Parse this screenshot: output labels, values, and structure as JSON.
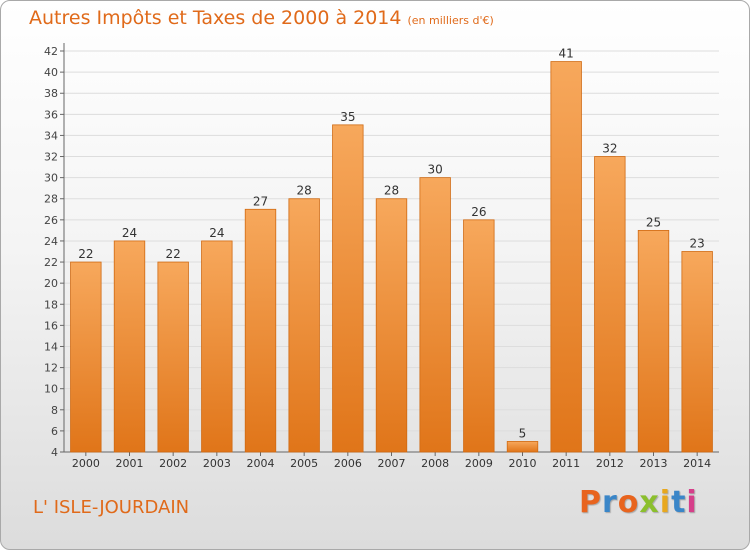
{
  "chart_data": {
    "type": "bar",
    "title": "Autres Impôts et Taxes de 2000 à 2014",
    "unit_label": "(en milliers d'€)",
    "categories": [
      "2000",
      "2001",
      "2002",
      "2003",
      "2004",
      "2005",
      "2006",
      "2007",
      "2008",
      "2009",
      "2010",
      "2011",
      "2012",
      "2013",
      "2014"
    ],
    "values": [
      22,
      24,
      22,
      24,
      27,
      28,
      35,
      28,
      30,
      26,
      5,
      41,
      32,
      25,
      23
    ],
    "ylim": [
      4,
      42
    ],
    "yticks": [
      4,
      6,
      8,
      10,
      12,
      14,
      16,
      18,
      20,
      22,
      24,
      26,
      28,
      30,
      32,
      34,
      36,
      38,
      40,
      42
    ],
    "grid": true,
    "bar_color": "#f08a2c",
    "bar_color_light": "#f7a85c",
    "bar_color_dark": "#e07519"
  },
  "footer": {
    "location": "L' ISLE-JOURDAIN",
    "brand": "Proxiti",
    "brand_colors": [
      "#e8641e",
      "#3a86c8",
      "#e8641e",
      "#8bbf2d",
      "#e8a81e",
      "#3a86c8",
      "#d63f8a"
    ]
  },
  "colors": {
    "accent": "#e06a1a",
    "grid": "#dddddd",
    "axis": "#666666"
  }
}
